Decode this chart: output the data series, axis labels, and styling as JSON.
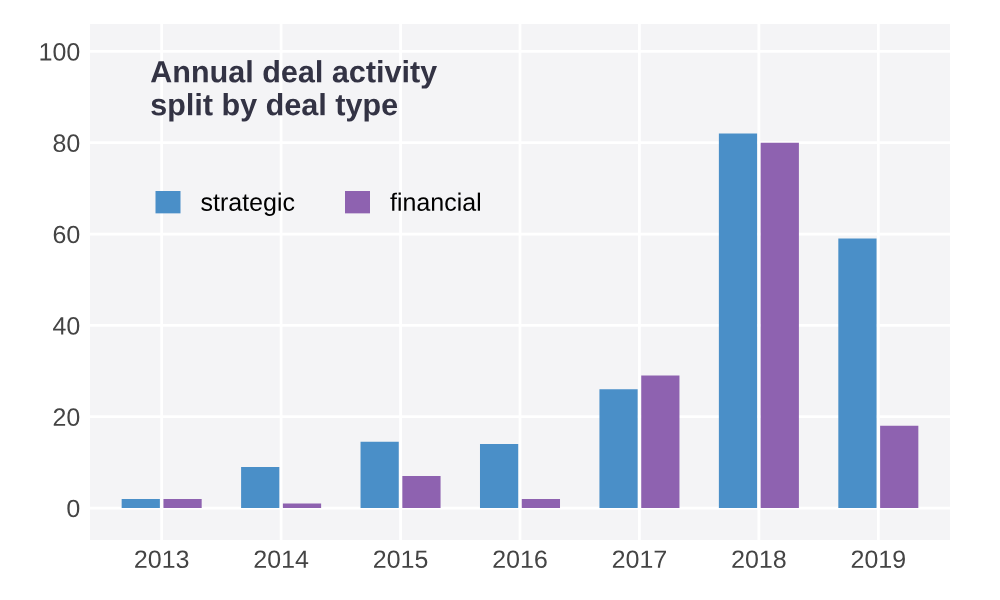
{
  "chart_data": {
    "type": "bar",
    "title": "Annual deal activity\nsplit by deal type",
    "categories": [
      "2013",
      "2014",
      "2015",
      "2016",
      "2017",
      "2018",
      "2019"
    ],
    "series": [
      {
        "name": "strategic",
        "color": "#4a8fc8",
        "values": [
          2,
          9,
          14.5,
          14,
          26,
          82,
          59
        ]
      },
      {
        "name": "financial",
        "color": "#8e62b0",
        "values": [
          2,
          1,
          7,
          2,
          29,
          80,
          18
        ]
      }
    ],
    "ylim": [
      -7,
      106
    ],
    "yticks": [
      0,
      20,
      40,
      60,
      80,
      100
    ],
    "grid": true,
    "legend": "top left"
  }
}
